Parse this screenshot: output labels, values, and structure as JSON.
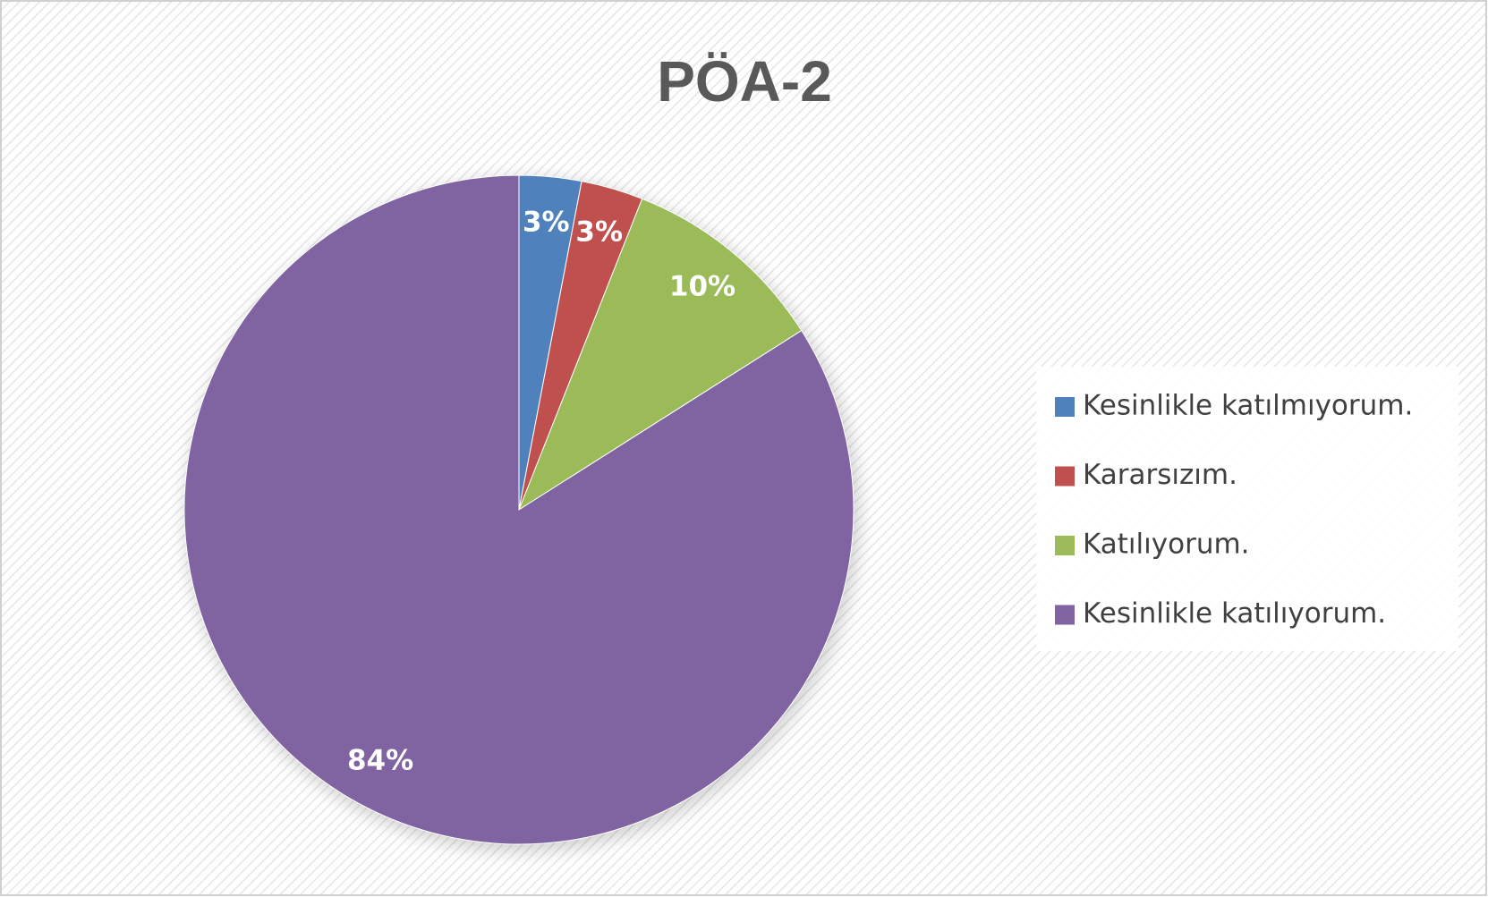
{
  "chart_data": {
    "type": "pie",
    "title": "PÖA-2",
    "categories": [
      "Kesinlikle katılmıyorum.",
      "Kararsızım.",
      "Katılıyorum.",
      "Kesinlikle katılıyorum."
    ],
    "values": [
      3,
      3,
      10,
      84
    ],
    "value_labels": [
      "3%",
      "3%",
      "10%",
      "84%"
    ],
    "colors": [
      "#4f81bd",
      "#c0504d",
      "#9bbb59",
      "#8064a2"
    ],
    "legend": "right"
  }
}
